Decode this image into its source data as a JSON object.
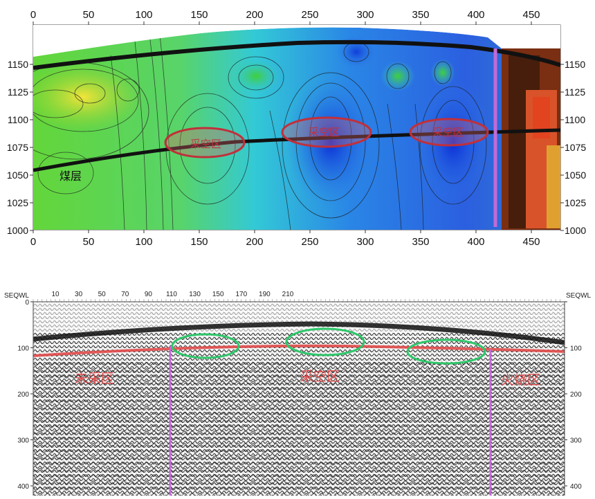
{
  "top_panel": {
    "x_ticks": [
      "0",
      "50",
      "100",
      "150",
      "200",
      "250",
      "300",
      "350",
      "400",
      "450"
    ],
    "y_ticks": [
      "1150",
      "1125",
      "1100",
      "1075",
      "1050",
      "1025",
      "1000"
    ],
    "labels": {
      "coal_seam": "煤层",
      "goaf_1": "采空区",
      "goaf_2": "采空区",
      "goaf_3": "采空区"
    }
  },
  "bottom_panel": {
    "axis_title": "SEQWL",
    "x_ticks": [
      "10",
      "30",
      "50",
      "70",
      "90",
      "110",
      "130",
      "150",
      "170",
      "190",
      "210"
    ],
    "y_ticks": [
      "0",
      "100",
      "200",
      "300",
      "400"
    ],
    "labels": {
      "unmined": "未采区",
      "goaf": "采空区",
      "fire": "火烧区"
    }
  }
}
